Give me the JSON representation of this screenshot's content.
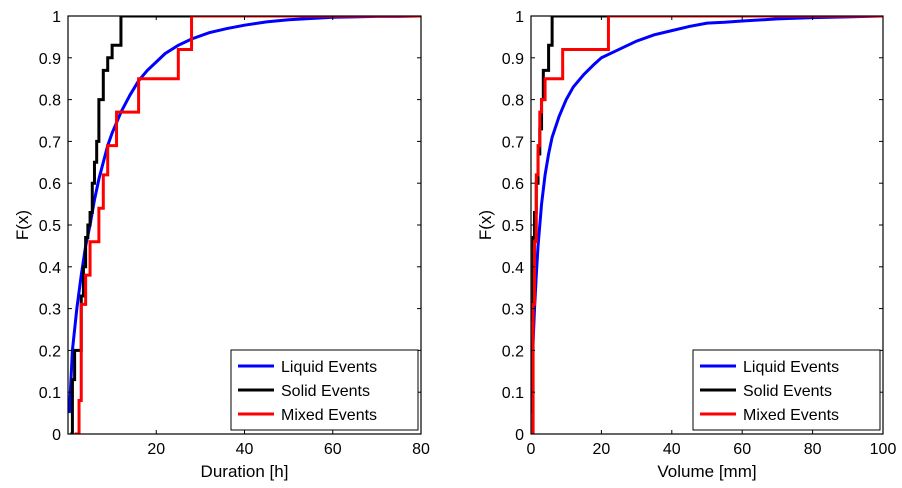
{
  "chart_data": [
    {
      "type": "line",
      "step": true,
      "xlabel": "Duration [h]",
      "ylabel": "F(x)",
      "xlim": [
        0,
        80
      ],
      "ylim": [
        0,
        1
      ],
      "xticks": [
        "20",
        "40",
        "60",
        "80"
      ],
      "yticks": [
        "0",
        "0.1",
        "0.2",
        "0.3",
        "0.4",
        "0.5",
        "0.6",
        "0.7",
        "0.8",
        "0.9",
        "1"
      ],
      "grid": false,
      "legend_position": "bottom-right",
      "series": [
        {
          "name": "Liquid Events",
          "color": "#0000ff",
          "step": false,
          "x": [
            0.3,
            1,
            2,
            3,
            4,
            5,
            6,
            7,
            8,
            9,
            10,
            12,
            14,
            16,
            18,
            20,
            22,
            25,
            28,
            32,
            36,
            40,
            45,
            50,
            55,
            60,
            65,
            70,
            75,
            80
          ],
          "y": [
            0.05,
            0.2,
            0.3,
            0.38,
            0.45,
            0.5,
            0.56,
            0.61,
            0.65,
            0.69,
            0.72,
            0.77,
            0.81,
            0.845,
            0.87,
            0.89,
            0.91,
            0.93,
            0.945,
            0.96,
            0.97,
            0.978,
            0.986,
            0.991,
            0.994,
            0.997,
            0.998,
            0.999,
            0.999,
            1.0
          ]
        },
        {
          "name": "Solid Events",
          "color": "#000000",
          "step": true,
          "x": [
            0.5,
            1,
            1.5,
            2,
            3,
            3.5,
            4,
            4.5,
            5,
            5.5,
            6,
            6.5,
            7,
            8,
            9,
            10,
            11,
            12
          ],
          "y": [
            0,
            0.13,
            0.2,
            0.2,
            0.33,
            0.4,
            0.47,
            0.5,
            0.53,
            0.6,
            0.65,
            0.7,
            0.8,
            0.87,
            0.9,
            0.93,
            0.93,
            1.0
          ]
        },
        {
          "name": "Mixed Events",
          "color": "#ff0000",
          "step": true,
          "x": [
            1.5,
            2.5,
            3,
            4,
            5,
            7,
            8,
            9,
            11,
            12,
            16,
            25,
            28
          ],
          "y": [
            0,
            0.08,
            0.31,
            0.38,
            0.46,
            0.54,
            0.62,
            0.69,
            0.77,
            0.77,
            0.85,
            0.92,
            1.0
          ]
        }
      ]
    },
    {
      "type": "line",
      "step": true,
      "xlabel": "Volume [mm]",
      "ylabel": "F(x)",
      "xlim": [
        0,
        100
      ],
      "ylim": [
        0,
        1
      ],
      "xticks": [
        "0",
        "20",
        "40",
        "60",
        "80",
        "100"
      ],
      "yticks": [
        "0",
        "0.1",
        "0.2",
        "0.3",
        "0.4",
        "0.5",
        "0.6",
        "0.7",
        "0.8",
        "0.9",
        "1"
      ],
      "grid": false,
      "legend_position": "bottom-right",
      "series": [
        {
          "name": "Liquid Events",
          "color": "#0000ff",
          "step": false,
          "x": [
            0.2,
            0.5,
            1,
            1.5,
            2,
            3,
            4,
            5,
            6,
            8,
            10,
            12,
            15,
            18,
            20,
            25,
            30,
            35,
            40,
            45,
            50,
            55,
            60,
            70,
            80,
            90,
            100
          ],
          "y": [
            0.05,
            0.2,
            0.3,
            0.38,
            0.45,
            0.55,
            0.62,
            0.67,
            0.71,
            0.76,
            0.8,
            0.83,
            0.86,
            0.885,
            0.9,
            0.92,
            0.94,
            0.955,
            0.965,
            0.975,
            0.983,
            0.985,
            0.988,
            0.993,
            0.996,
            0.998,
            1.0
          ]
        },
        {
          "name": "Solid Events",
          "color": "#000000",
          "step": true,
          "x": [
            0.3,
            0.6,
            1,
            1.5,
            2,
            2.5,
            3,
            3.5,
            4,
            5,
            6
          ],
          "y": [
            0.27,
            0.47,
            0.53,
            0.6,
            0.67,
            0.73,
            0.8,
            0.87,
            0.87,
            0.93,
            1.0
          ]
        },
        {
          "name": "Mixed Events",
          "color": "#ff0000",
          "step": true,
          "x": [
            0.3,
            0.6,
            1,
            1.5,
            2,
            2.5,
            3,
            4,
            5,
            9,
            10,
            22
          ],
          "y": [
            0,
            0.31,
            0.46,
            0.62,
            0.69,
            0.77,
            0.8,
            0.85,
            0.85,
            0.92,
            0.92,
            1.0
          ]
        }
      ]
    }
  ]
}
